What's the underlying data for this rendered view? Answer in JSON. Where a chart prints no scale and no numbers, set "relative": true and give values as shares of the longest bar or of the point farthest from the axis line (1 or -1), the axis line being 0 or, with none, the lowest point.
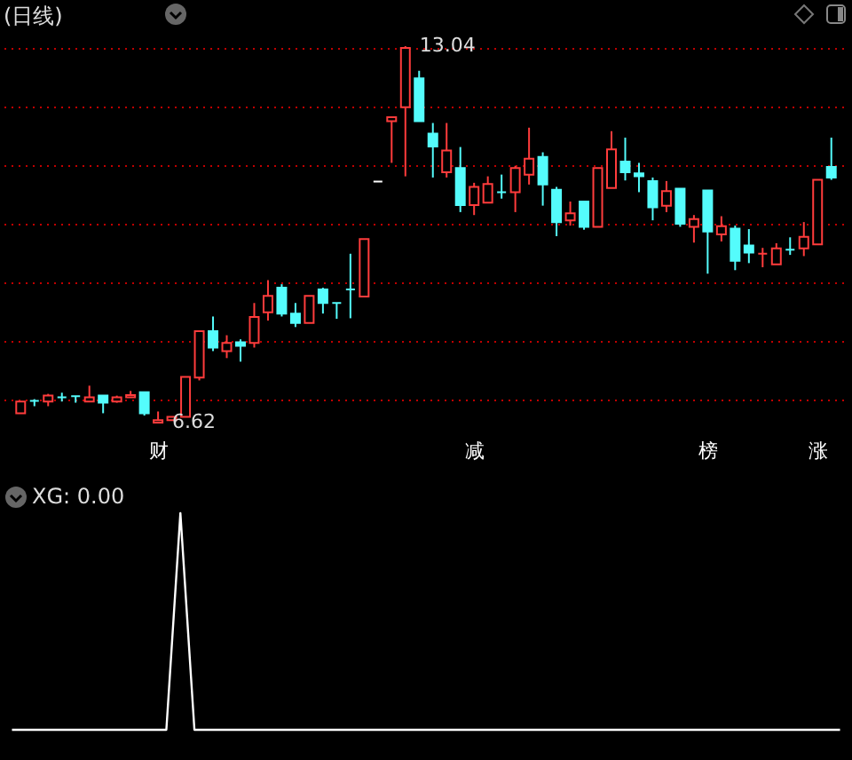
{
  "chart_data": [
    {
      "type": "candlestick",
      "title": "(日线)",
      "categories": [
        null,
        null,
        null,
        null,
        null,
        null,
        null,
        null,
        null,
        null,
        "财",
        null,
        null,
        null,
        null,
        null,
        null,
        null,
        null,
        null,
        null,
        null,
        null,
        null,
        null,
        null,
        null,
        null,
        null,
        null,
        null,
        null,
        null,
        "减",
        null,
        null,
        null,
        null,
        null,
        null,
        null,
        null,
        null,
        null,
        null,
        null,
        null,
        null,
        null,
        null,
        "榜",
        null,
        null,
        null,
        null,
        null,
        null,
        null,
        "涨",
        null
      ],
      "ohlc": [
        [
          6.78,
          6.98,
          6.78,
          6.98
        ],
        [
          6.99,
          7.02,
          6.9,
          6.99
        ],
        [
          6.98,
          7.11,
          6.9,
          7.08
        ],
        [
          7.05,
          7.13,
          6.98,
          7.05
        ],
        [
          7.07,
          7.07,
          6.96,
          7.07
        ],
        [
          6.98,
          7.25,
          6.98,
          7.05
        ],
        [
          7.08,
          7.08,
          6.78,
          6.96
        ],
        [
          6.98,
          7.08,
          6.96,
          7.05
        ],
        [
          7.05,
          7.16,
          7.05,
          7.09
        ],
        [
          7.14,
          7.14,
          6.74,
          6.78
        ],
        [
          6.62,
          6.81,
          6.62,
          6.66
        ],
        [
          6.66,
          6.72,
          6.66,
          6.72
        ],
        [
          6.72,
          7.4,
          6.72,
          7.4
        ],
        [
          7.39,
          8.18,
          7.34,
          8.18
        ],
        [
          8.18,
          8.43,
          7.84,
          7.9
        ],
        [
          7.84,
          8.11,
          7.72,
          7.98
        ],
        [
          7.99,
          8.04,
          7.66,
          7.93
        ],
        [
          7.98,
          8.66,
          7.9,
          8.42
        ],
        [
          8.5,
          9.05,
          8.36,
          8.78
        ],
        [
          8.92,
          8.98,
          8.43,
          8.48
        ],
        [
          8.48,
          8.66,
          8.25,
          8.32
        ],
        [
          8.32,
          8.78,
          8.32,
          8.78
        ],
        [
          8.89,
          8.92,
          8.48,
          8.66
        ],
        [
          8.66,
          8.66,
          8.39,
          8.66
        ],
        [
          8.89,
          9.5,
          8.4,
          8.89
        ],
        [
          8.77,
          9.75,
          8.77,
          9.75
        ],
        [
          10.73,
          10.73,
          10.73,
          10.73
        ],
        [
          11.76,
          11.83,
          11.05,
          11.83
        ],
        [
          12.0,
          13.04,
          10.82,
          13.01
        ],
        [
          12.49,
          12.62,
          11.76,
          11.76
        ],
        [
          11.55,
          11.73,
          10.8,
          11.33
        ],
        [
          10.89,
          11.73,
          10.8,
          11.26
        ],
        [
          10.96,
          11.32,
          10.21,
          10.33
        ],
        [
          10.33,
          10.71,
          10.16,
          10.64
        ],
        [
          10.37,
          10.82,
          10.37,
          10.69
        ],
        [
          10.55,
          10.85,
          10.44,
          10.55
        ],
        [
          10.55,
          11.0,
          10.21,
          10.96
        ],
        [
          10.85,
          11.65,
          10.68,
          11.12
        ],
        [
          11.15,
          11.23,
          10.32,
          10.68
        ],
        [
          10.59,
          10.64,
          9.8,
          10.04
        ],
        [
          10.07,
          10.39,
          9.98,
          10.19
        ],
        [
          10.39,
          10.39,
          9.91,
          9.96
        ],
        [
          9.96,
          10.96,
          9.96,
          10.96
        ],
        [
          10.62,
          11.59,
          10.62,
          11.28
        ],
        [
          11.07,
          11.48,
          10.75,
          10.89
        ],
        [
          10.87,
          11.05,
          10.55,
          10.82
        ],
        [
          10.74,
          10.8,
          10.07,
          10.29
        ],
        [
          10.32,
          10.74,
          10.21,
          10.57
        ],
        [
          10.61,
          10.61,
          9.96,
          10.01
        ],
        [
          9.96,
          10.16,
          9.69,
          10.09
        ],
        [
          10.58,
          10.58,
          9.16,
          9.88
        ],
        [
          9.83,
          10.14,
          9.71,
          9.97
        ],
        [
          9.93,
          9.98,
          9.22,
          9.38
        ],
        [
          9.64,
          9.92,
          9.34,
          9.52
        ],
        [
          9.5,
          9.6,
          9.27,
          9.5
        ],
        [
          9.32,
          9.68,
          9.32,
          9.59
        ],
        [
          9.57,
          9.78,
          9.48,
          9.57
        ],
        [
          9.59,
          10.04,
          9.46,
          9.79
        ],
        [
          9.66,
          10.76,
          9.66,
          10.76
        ],
        [
          10.98,
          11.48,
          10.76,
          10.8
        ]
      ],
      "colors": [
        "#ff3c3c",
        "#54fcfc",
        "#ff3c3c",
        "#54fcfc",
        "#54fcfc",
        "#ff3c3c",
        "#54fcfc",
        "#ff3c3c",
        "#ff3c3c",
        "#54fcfc",
        "#ff3c3c",
        "#ff3c3c",
        "#ff3c3c",
        "#ff3c3c",
        "#54fcfc",
        "#ff3c3c",
        "#54fcfc",
        "#ff3c3c",
        "#ff3c3c",
        "#54fcfc",
        "#54fcfc",
        "#ff3c3c",
        "#54fcfc",
        "#54fcfc",
        "#54fcfc",
        "#ff3c3c",
        "#ffffff",
        "#ff3c3c",
        "#ff3c3c",
        "#54fcfc",
        "#54fcfc",
        "#ff3c3c",
        "#54fcfc",
        "#ff3c3c",
        "#ff3c3c",
        "#54fcfc",
        "#ff3c3c",
        "#ff3c3c",
        "#54fcfc",
        "#54fcfc",
        "#ff3c3c",
        "#54fcfc",
        "#ff3c3c",
        "#ff3c3c",
        "#54fcfc",
        "#54fcfc",
        "#54fcfc",
        "#ff3c3c",
        "#54fcfc",
        "#ff3c3c",
        "#54fcfc",
        "#ff3c3c",
        "#54fcfc",
        "#54fcfc",
        "#ff3c3c",
        "#ff3c3c",
        "#54fcfc",
        "#ff3c3c",
        "#ff3c3c",
        "#54fcfc"
      ],
      "yticks": [
        {
          "value": 7,
          "label": null
        },
        {
          "value": 8,
          "label": null
        },
        {
          "value": 9,
          "label": null
        },
        {
          "value": 10,
          "label": null
        },
        {
          "value": 11,
          "label": null
        },
        {
          "value": 12,
          "label": null
        },
        {
          "value": 13,
          "label": null
        }
      ],
      "grid": "y",
      "tick_labels": "x",
      "annotations": [
        "13.04",
        {
          "text": "6.62",
          "x": "财",
          "y": 6.62
        }
      ]
    },
    {
      "type": "line",
      "title": "XG: 0.00",
      "relative": true,
      "tick_labels": false,
      "categories": [
        null,
        null,
        null,
        null,
        null,
        null,
        null,
        null,
        null,
        null,
        null,
        null,
        null,
        null,
        null,
        null,
        null,
        null,
        null,
        null,
        null,
        null,
        null,
        null,
        null,
        null,
        null,
        null,
        null,
        null,
        null,
        null,
        null,
        null,
        null,
        null,
        null,
        null,
        null,
        null,
        null,
        null,
        null,
        null,
        null,
        null,
        null,
        null,
        null,
        null,
        null,
        null,
        null,
        null,
        null,
        null,
        null,
        null,
        null,
        null
      ],
      "series": [
        {
          "color": "#ffffff",
          "values": [
            0,
            0,
            0,
            0,
            0,
            0,
            0,
            0,
            0,
            0,
            0,
            0,
            1,
            0,
            0,
            0,
            0,
            0,
            0,
            0,
            0,
            0,
            0,
            0,
            0,
            0,
            0,
            0,
            0,
            0,
            0,
            0,
            0,
            0,
            0,
            0,
            0,
            0,
            0,
            0,
            0,
            0,
            0,
            0,
            0,
            0,
            0,
            0,
            0,
            0,
            0,
            0,
            0,
            0,
            0,
            0,
            0,
            0,
            0,
            0
          ]
        }
      ]
    }
  ]
}
